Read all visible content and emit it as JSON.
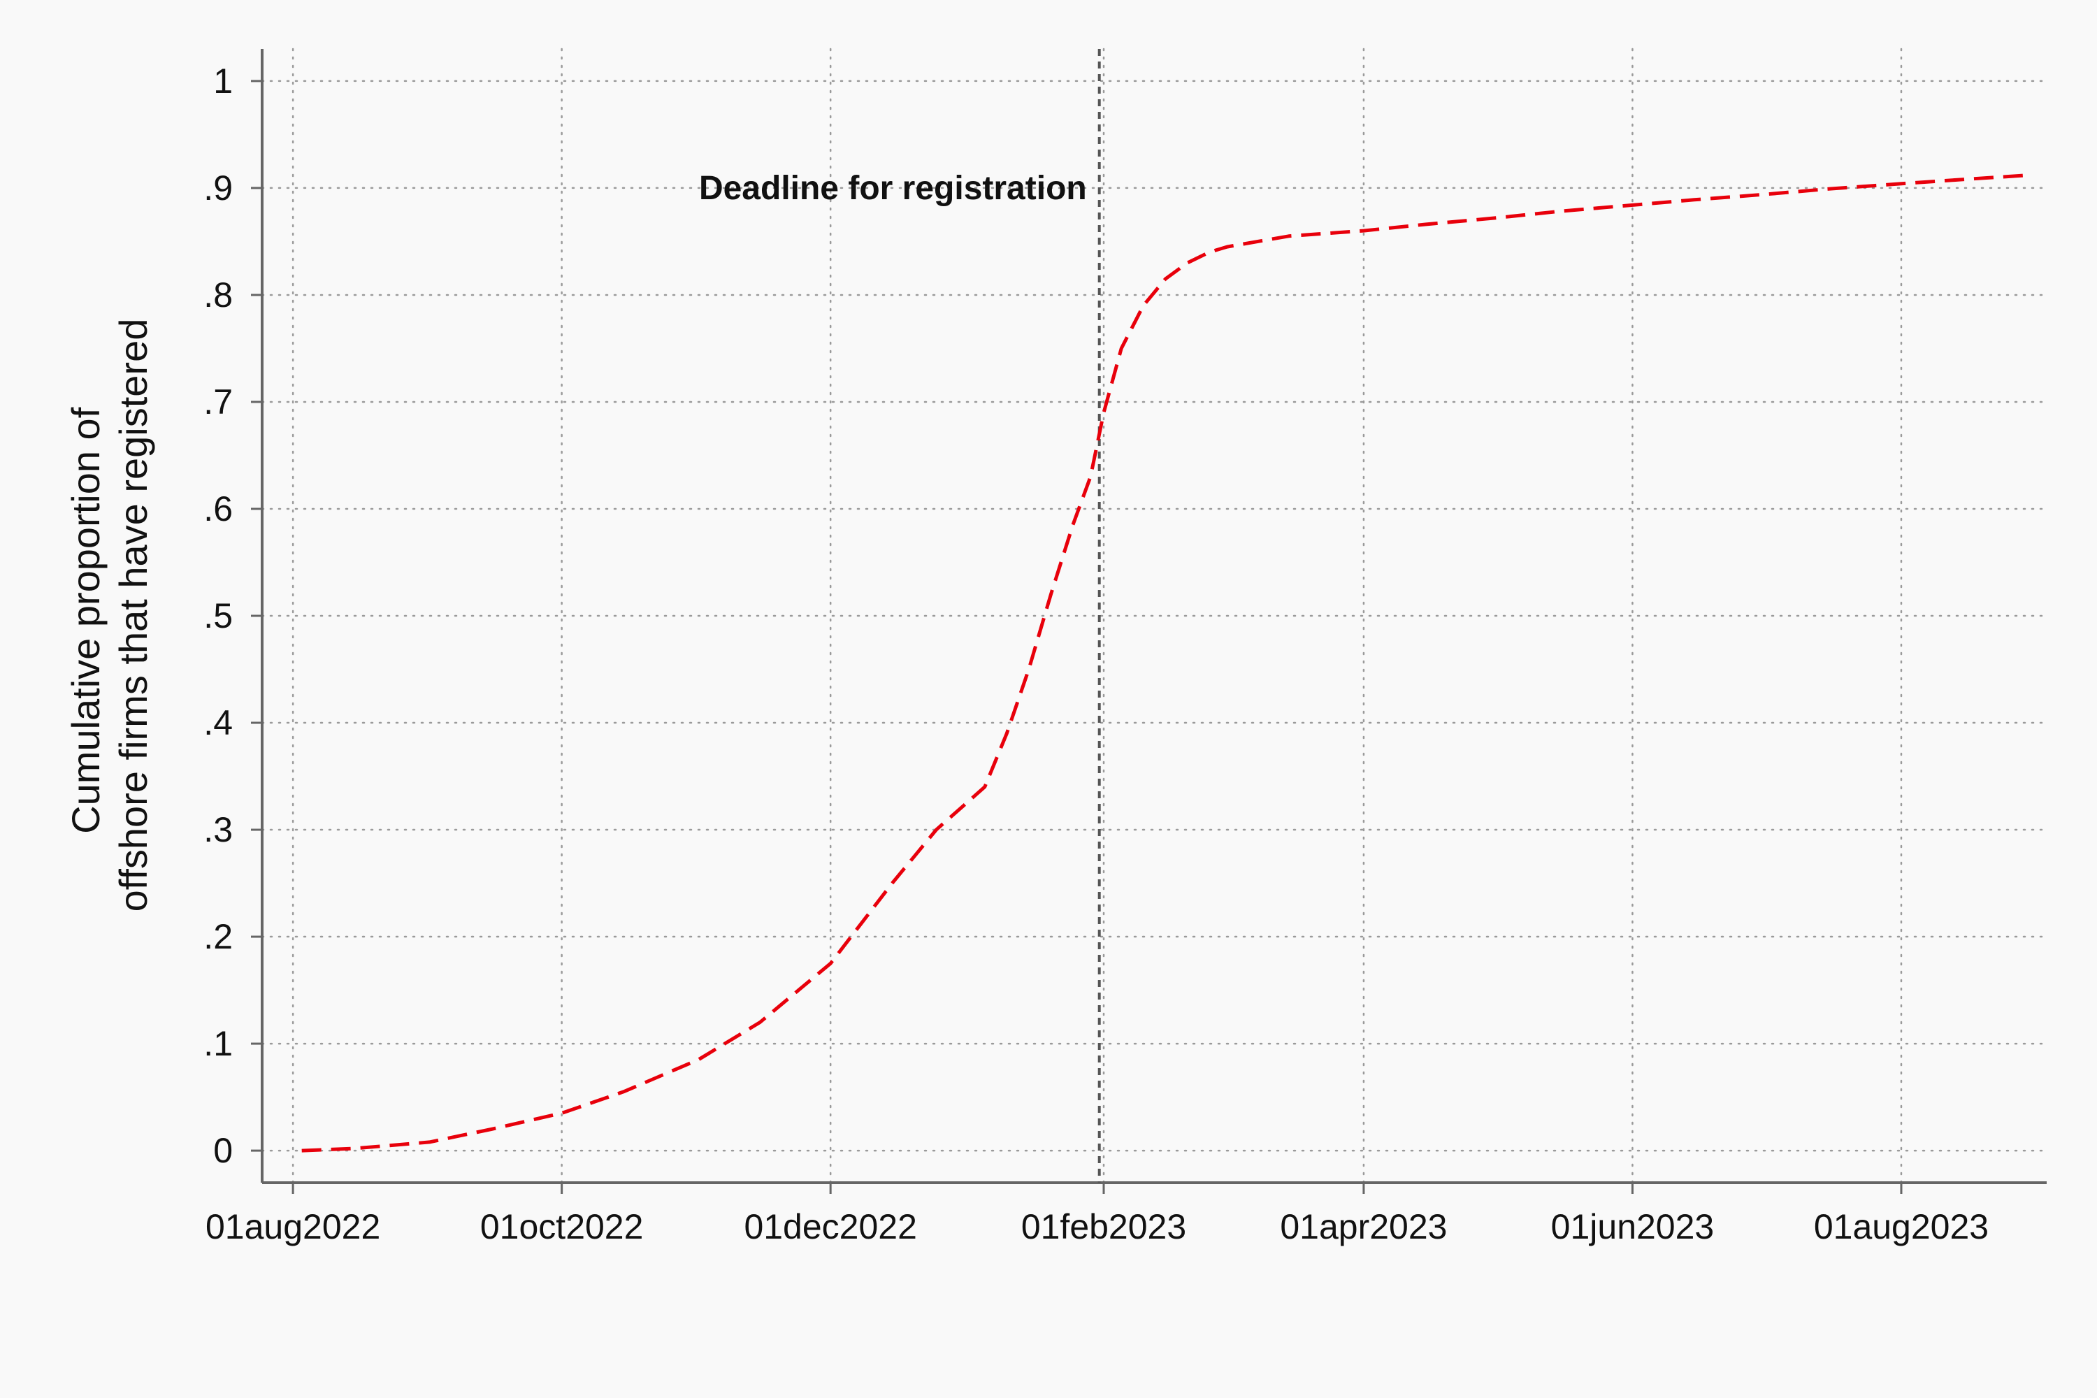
{
  "chart_data": {
    "type": "line",
    "title": "",
    "xlabel": "",
    "ylabel_lines": [
      "Cumulative proportion of",
      "offshore firms that have registered"
    ],
    "x_tick_labels": [
      "01aug2022",
      "01oct2022",
      "01dec2022",
      "01feb2023",
      "01apr2023",
      "01jun2023",
      "01aug2023"
    ],
    "x_ticks": [
      "2022-08-01",
      "2022-10-01",
      "2022-12-01",
      "2023-02-01",
      "2023-04-01",
      "2023-06-01",
      "2023-08-01"
    ],
    "xlim": [
      "2022-07-25",
      "2023-09-03"
    ],
    "y_tick_labels": [
      "0",
      ".1",
      ".2",
      ".3",
      ".4",
      ".5",
      ".6",
      ".7",
      ".8",
      ".9",
      "1"
    ],
    "y_ticks": [
      0,
      0.1,
      0.2,
      0.3,
      0.4,
      0.5,
      0.6,
      0.7,
      0.8,
      0.9,
      1
    ],
    "ylim": [
      -0.03,
      1.03
    ],
    "grid": true,
    "grid_style": "dotted",
    "line_color": "#e8000b",
    "line_style": "dashed",
    "reference_line": {
      "x": "2023-01-31",
      "label": "Deadline for registration",
      "color": "#555555"
    },
    "series": [
      {
        "x": [
          "2022-08-03",
          "2022-08-15",
          "2022-09-01",
          "2022-09-15",
          "2022-10-01",
          "2022-10-15",
          "2022-11-01",
          "2022-11-15",
          "2022-12-01",
          "2022-12-15",
          "2022-12-25",
          "2023-01-05",
          "2023-01-10",
          "2023-01-15",
          "2023-01-20",
          "2023-01-25",
          "2023-01-29",
          "2023-02-01",
          "2023-02-05",
          "2023-02-10",
          "2023-02-15",
          "2023-02-20",
          "2023-02-25",
          "2023-03-01",
          "2023-03-15",
          "2023-04-01",
          "2023-04-15",
          "2023-05-01",
          "2023-05-15",
          "2023-06-01",
          "2023-06-15",
          "2023-07-01",
          "2023-07-15",
          "2023-08-01",
          "2023-08-15",
          "2023-08-30"
        ],
        "y": [
          0.0,
          0.002,
          0.008,
          0.02,
          0.035,
          0.055,
          0.085,
          0.12,
          0.175,
          0.25,
          0.3,
          0.34,
          0.39,
          0.45,
          0.52,
          0.585,
          0.63,
          0.69,
          0.75,
          0.79,
          0.815,
          0.83,
          0.84,
          0.845,
          0.855,
          0.86,
          0.866,
          0.872,
          0.878,
          0.884,
          0.889,
          0.894,
          0.899,
          0.904,
          0.908,
          0.912
        ]
      }
    ]
  }
}
